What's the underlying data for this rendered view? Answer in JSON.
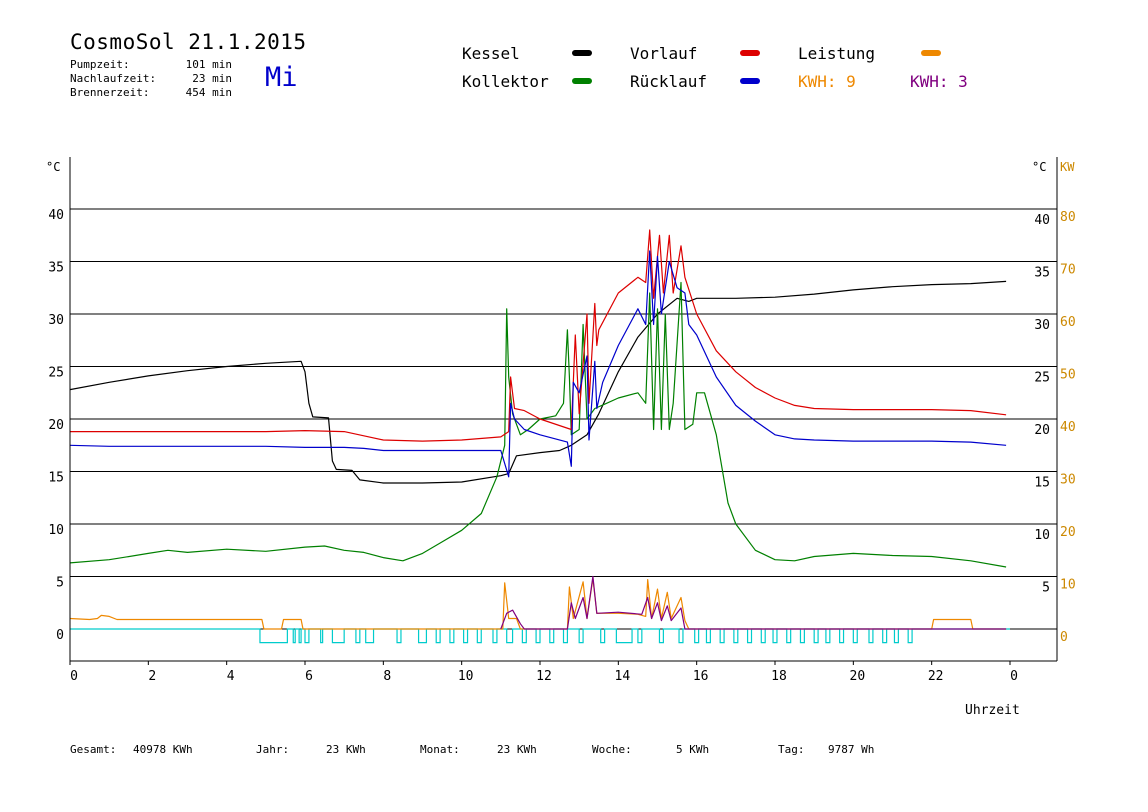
{
  "header": {
    "title": "CosmoSol 21.1.2015",
    "day": "Mi",
    "stats": [
      {
        "label": "Pumpzeit:",
        "value": "101 min"
      },
      {
        "label": "Nachlaufzeit:",
        "value": "23 min"
      },
      {
        "label": "Brennerzeit:",
        "value": "454 min"
      }
    ]
  },
  "legend": {
    "kessel": "Kessel",
    "kollektor": "Kollektor",
    "vorlauf": "Vorlauf",
    "ruecklauf": "Rücklauf",
    "leistung": "Leistung",
    "kwh_orange": "KWH: 9",
    "kwh_purple": "KWH: 3"
  },
  "footer": {
    "gesamt_label": "Gesamt:",
    "gesamt_value": "40978 KWh",
    "jahr_label": "Jahr:",
    "jahr_value": "23 KWh",
    "monat_label": "Monat:",
    "monat_value": "23 KWh",
    "woche_label": "Woche:",
    "woche_value": "5 KWh",
    "tag_label": "Tag:",
    "tag_value": "9787 Wh"
  },
  "colors": {
    "kessel": "#000000",
    "kollektor": "#008000",
    "vorlauf": "#dd0000",
    "ruecklauf": "#0000cc",
    "leistung": "#ee8800",
    "kwh_purple": "#800080",
    "pump": "#00cccc",
    "kw_axis": "#cc8800"
  },
  "chart_data": {
    "type": "line",
    "x_label": "Uhrzeit",
    "y_left_unit": "°C",
    "y_right_unit": "°C",
    "y2_unit": "KW",
    "xlim": [
      0,
      24
    ],
    "ylim": [
      -3,
      43
    ],
    "x_ticks": [
      "0",
      "2",
      "4",
      "6",
      "8",
      "10",
      "12",
      "14",
      "16",
      "18",
      "20",
      "22",
      "0"
    ],
    "y_ticks": [
      "0",
      "5",
      "10",
      "15",
      "20",
      "25",
      "30",
      "35",
      "40"
    ],
    "y2_ticks": [
      "0",
      "10",
      "20",
      "30",
      "40",
      "50",
      "60",
      "70",
      "80"
    ],
    "grid": true,
    "series": [
      {
        "name": "Kessel",
        "color": "#000000",
        "points": [
          [
            0,
            22.8
          ],
          [
            1,
            23.5
          ],
          [
            2,
            24.1
          ],
          [
            3,
            24.6
          ],
          [
            4,
            25.0
          ],
          [
            5,
            25.3
          ],
          [
            5.9,
            25.5
          ],
          [
            6.0,
            24.5
          ],
          [
            6.1,
            21.5
          ],
          [
            6.2,
            20.2
          ],
          [
            6.6,
            20.1
          ],
          [
            6.7,
            16.0
          ],
          [
            6.8,
            15.2
          ],
          [
            7.2,
            15.1
          ],
          [
            7.4,
            14.2
          ],
          [
            8,
            13.9
          ],
          [
            9,
            13.9
          ],
          [
            10,
            14.0
          ],
          [
            11,
            14.6
          ],
          [
            11.2,
            14.8
          ],
          [
            11.4,
            16.5
          ],
          [
            12,
            16.8
          ],
          [
            12.5,
            17.0
          ],
          [
            12.8,
            17.5
          ],
          [
            13.2,
            18.5
          ],
          [
            13.5,
            20.5
          ],
          [
            14,
            24.5
          ],
          [
            14.5,
            27.8
          ],
          [
            15,
            30.0
          ],
          [
            15.5,
            31.5
          ],
          [
            15.8,
            31.2
          ],
          [
            16,
            31.5
          ],
          [
            17,
            31.5
          ],
          [
            18,
            31.6
          ],
          [
            19,
            31.9
          ],
          [
            20,
            32.3
          ],
          [
            21,
            32.6
          ],
          [
            22,
            32.8
          ],
          [
            23,
            32.9
          ],
          [
            23.9,
            33.1
          ]
        ]
      },
      {
        "name": "Kollektor",
        "color": "#008000",
        "points": [
          [
            0,
            6.3
          ],
          [
            1,
            6.6
          ],
          [
            2,
            7.2
          ],
          [
            2.5,
            7.5
          ],
          [
            3,
            7.3
          ],
          [
            4,
            7.6
          ],
          [
            5,
            7.4
          ],
          [
            6,
            7.8
          ],
          [
            6.5,
            7.9
          ],
          [
            7,
            7.5
          ],
          [
            7.5,
            7.3
          ],
          [
            8,
            6.8
          ],
          [
            8.5,
            6.5
          ],
          [
            9,
            7.2
          ],
          [
            9.5,
            8.3
          ],
          [
            10,
            9.4
          ],
          [
            10.5,
            11.0
          ],
          [
            10.9,
            14.5
          ],
          [
            11.1,
            17.5
          ],
          [
            11.15,
            30.5
          ],
          [
            11.2,
            24.0
          ],
          [
            11.3,
            20.5
          ],
          [
            11.5,
            18.5
          ],
          [
            11.7,
            19.0
          ],
          [
            12,
            20.0
          ],
          [
            12.4,
            20.3
          ],
          [
            12.6,
            21.5
          ],
          [
            12.7,
            28.5
          ],
          [
            12.75,
            24.0
          ],
          [
            12.8,
            18.5
          ],
          [
            13.0,
            19.0
          ],
          [
            13.1,
            29.0
          ],
          [
            13.2,
            20.0
          ],
          [
            13.4,
            21.0
          ],
          [
            13.7,
            21.5
          ],
          [
            14,
            22.0
          ],
          [
            14.5,
            22.5
          ],
          [
            14.7,
            21.5
          ],
          [
            14.8,
            32.0
          ],
          [
            14.9,
            19.0
          ],
          [
            15.0,
            30.5
          ],
          [
            15.1,
            19.0
          ],
          [
            15.2,
            30.0
          ],
          [
            15.3,
            19.0
          ],
          [
            15.4,
            21.5
          ],
          [
            15.6,
            33.0
          ],
          [
            15.7,
            19.0
          ],
          [
            15.9,
            19.5
          ],
          [
            16.0,
            22.5
          ],
          [
            16.2,
            22.5
          ],
          [
            16.5,
            18.5
          ],
          [
            16.8,
            12.0
          ],
          [
            17,
            10.0
          ],
          [
            17.5,
            7.5
          ],
          [
            18,
            6.6
          ],
          [
            18.5,
            6.5
          ],
          [
            19,
            6.9
          ],
          [
            20,
            7.2
          ],
          [
            21,
            7.0
          ],
          [
            22,
            6.9
          ],
          [
            23,
            6.5
          ],
          [
            23.9,
            5.9
          ]
        ]
      },
      {
        "name": "Vorlauf",
        "color": "#dd0000",
        "points": [
          [
            0,
            18.8
          ],
          [
            1,
            18.8
          ],
          [
            2,
            18.8
          ],
          [
            3,
            18.8
          ],
          [
            4,
            18.8
          ],
          [
            5,
            18.8
          ],
          [
            6,
            18.9
          ],
          [
            7,
            18.8
          ],
          [
            7.5,
            18.4
          ],
          [
            8,
            18.0
          ],
          [
            9,
            17.9
          ],
          [
            10,
            18.0
          ],
          [
            11,
            18.3
          ],
          [
            11.2,
            18.8
          ],
          [
            11.25,
            24.0
          ],
          [
            11.35,
            21.0
          ],
          [
            11.6,
            20.8
          ],
          [
            12,
            20.0
          ],
          [
            12.8,
            19.0
          ],
          [
            12.9,
            28.0
          ],
          [
            13.0,
            20.5
          ],
          [
            13.2,
            30.0
          ],
          [
            13.25,
            21.5
          ],
          [
            13.4,
            31.0
          ],
          [
            13.45,
            27.0
          ],
          [
            13.5,
            28.5
          ],
          [
            14,
            32.0
          ],
          [
            14.5,
            33.5
          ],
          [
            14.7,
            33.0
          ],
          [
            14.8,
            38.0
          ],
          [
            14.9,
            31.5
          ],
          [
            15.05,
            37.5
          ],
          [
            15.15,
            32.0
          ],
          [
            15.3,
            37.5
          ],
          [
            15.4,
            32.0
          ],
          [
            15.6,
            36.5
          ],
          [
            15.7,
            33.5
          ],
          [
            16,
            30.0
          ],
          [
            16.5,
            26.5
          ],
          [
            17,
            24.5
          ],
          [
            17.5,
            23.0
          ],
          [
            18,
            22.0
          ],
          [
            18.5,
            21.3
          ],
          [
            19,
            21.0
          ],
          [
            20,
            20.9
          ],
          [
            21,
            20.9
          ],
          [
            22,
            20.9
          ],
          [
            23,
            20.8
          ],
          [
            23.9,
            20.4
          ]
        ]
      },
      {
        "name": "Rücklauf",
        "color": "#0000cc",
        "points": [
          [
            0,
            17.5
          ],
          [
            1,
            17.4
          ],
          [
            2,
            17.4
          ],
          [
            3,
            17.4
          ],
          [
            4,
            17.4
          ],
          [
            5,
            17.4
          ],
          [
            6,
            17.3
          ],
          [
            7,
            17.3
          ],
          [
            7.5,
            17.2
          ],
          [
            8,
            17.0
          ],
          [
            9,
            17.0
          ],
          [
            10,
            17.0
          ],
          [
            11,
            17.0
          ],
          [
            11.2,
            14.5
          ],
          [
            11.25,
            21.5
          ],
          [
            11.35,
            20.0
          ],
          [
            11.6,
            19.0
          ],
          [
            12,
            18.5
          ],
          [
            12.7,
            17.8
          ],
          [
            12.8,
            15.5
          ],
          [
            12.85,
            23.5
          ],
          [
            13.0,
            22.5
          ],
          [
            13.2,
            26.0
          ],
          [
            13.25,
            18.0
          ],
          [
            13.4,
            25.5
          ],
          [
            13.45,
            21.0
          ],
          [
            13.6,
            23.5
          ],
          [
            14,
            27.0
          ],
          [
            14.5,
            30.5
          ],
          [
            14.7,
            29.0
          ],
          [
            14.8,
            36.0
          ],
          [
            14.9,
            29.0
          ],
          [
            15.0,
            35.5
          ],
          [
            15.1,
            30.0
          ],
          [
            15.3,
            35.0
          ],
          [
            15.5,
            32.5
          ],
          [
            15.7,
            32.0
          ],
          [
            15.8,
            29.0
          ],
          [
            16,
            28.0
          ],
          [
            16.5,
            24.0
          ],
          [
            17,
            21.3
          ],
          [
            17.5,
            19.8
          ],
          [
            18,
            18.5
          ],
          [
            18.5,
            18.1
          ],
          [
            19,
            18.0
          ],
          [
            20,
            17.9
          ],
          [
            21,
            17.9
          ],
          [
            22,
            17.9
          ],
          [
            23,
            17.8
          ],
          [
            23.9,
            17.5
          ]
        ]
      },
      {
        "name": "Leistung",
        "color": "#ee8800",
        "points": [
          [
            0,
            1.0
          ],
          [
            0.5,
            0.9
          ],
          [
            0.7,
            1.0
          ],
          [
            0.8,
            1.3
          ],
          [
            1.0,
            1.2
          ],
          [
            1.2,
            0.9
          ],
          [
            4.9,
            0.9
          ],
          [
            4.95,
            0.0
          ],
          [
            5.4,
            0.0
          ],
          [
            5.45,
            0.9
          ],
          [
            5.9,
            0.9
          ],
          [
            5.95,
            0.0
          ],
          [
            11.05,
            0.0
          ],
          [
            11.1,
            4.4
          ],
          [
            11.2,
            1.0
          ],
          [
            11.4,
            1.0
          ],
          [
            11.5,
            0.0
          ],
          [
            12.7,
            0.0
          ],
          [
            12.75,
            4.0
          ],
          [
            12.85,
            1.0
          ],
          [
            13.1,
            4.5
          ],
          [
            13.2,
            1.0
          ],
          [
            13.35,
            4.8
          ],
          [
            13.45,
            1.5
          ],
          [
            14,
            1.5
          ],
          [
            14.5,
            1.4
          ],
          [
            14.7,
            1.2
          ],
          [
            14.75,
            4.7
          ],
          [
            14.85,
            1.0
          ],
          [
            15.0,
            3.8
          ],
          [
            15.1,
            1.0
          ],
          [
            15.25,
            3.5
          ],
          [
            15.35,
            1.0
          ],
          [
            15.6,
            3.0
          ],
          [
            15.7,
            0.8
          ],
          [
            15.8,
            0.0
          ],
          [
            22.0,
            0.0
          ],
          [
            22.05,
            0.9
          ],
          [
            23.0,
            0.9
          ],
          [
            23.05,
            0.0
          ],
          [
            23.9,
            0.0
          ]
        ]
      },
      {
        "name": "KWH",
        "color": "#800080",
        "points": [
          [
            11.0,
            0.0
          ],
          [
            11.15,
            1.5
          ],
          [
            11.3,
            1.8
          ],
          [
            11.5,
            0.5
          ],
          [
            11.6,
            0.0
          ],
          [
            12.7,
            0.0
          ],
          [
            12.8,
            2.5
          ],
          [
            12.9,
            1.0
          ],
          [
            13.1,
            3.0
          ],
          [
            13.2,
            1.0
          ],
          [
            13.35,
            5.0
          ],
          [
            13.45,
            1.5
          ],
          [
            14,
            1.6
          ],
          [
            14.6,
            1.4
          ],
          [
            14.75,
            3.0
          ],
          [
            14.85,
            1.0
          ],
          [
            15.0,
            2.5
          ],
          [
            15.1,
            0.8
          ],
          [
            15.25,
            2.2
          ],
          [
            15.35,
            0.8
          ],
          [
            15.6,
            2.0
          ],
          [
            15.7,
            0.0
          ],
          [
            23.9,
            0.0
          ]
        ]
      }
    ],
    "pump_blocks": [
      [
        4.85,
        5.55
      ],
      [
        5.7,
        5.75
      ],
      [
        5.85,
        5.9
      ],
      [
        6.0,
        6.1
      ],
      [
        6.4,
        6.45
      ],
      [
        6.7,
        7.0
      ],
      [
        7.3,
        7.4
      ],
      [
        7.55,
        7.75
      ],
      [
        8.35,
        8.45
      ],
      [
        8.9,
        9.1
      ],
      [
        9.35,
        9.45
      ],
      [
        9.7,
        9.8
      ],
      [
        10.05,
        10.15
      ],
      [
        10.4,
        10.5
      ],
      [
        10.8,
        10.9
      ],
      [
        11.15,
        11.3
      ],
      [
        11.55,
        11.65
      ],
      [
        11.9,
        12.0
      ],
      [
        12.25,
        12.35
      ],
      [
        12.6,
        12.7
      ],
      [
        13.0,
        13.1
      ],
      [
        13.55,
        13.65
      ],
      [
        13.95,
        14.35
      ],
      [
        14.5,
        14.6
      ],
      [
        15.05,
        15.15
      ],
      [
        15.55,
        15.65
      ],
      [
        15.95,
        16.05
      ],
      [
        16.25,
        16.35
      ],
      [
        16.6,
        16.7
      ],
      [
        16.95,
        17.05
      ],
      [
        17.3,
        17.4
      ],
      [
        17.65,
        17.75
      ],
      [
        17.95,
        18.05
      ],
      [
        18.3,
        18.4
      ],
      [
        18.65,
        18.75
      ],
      [
        19.0,
        19.1
      ],
      [
        19.3,
        19.4
      ],
      [
        19.65,
        19.75
      ],
      [
        20.0,
        20.1
      ],
      [
        20.4,
        20.5
      ],
      [
        20.75,
        20.85
      ],
      [
        21.05,
        21.15
      ],
      [
        21.4,
        21.5
      ]
    ]
  }
}
